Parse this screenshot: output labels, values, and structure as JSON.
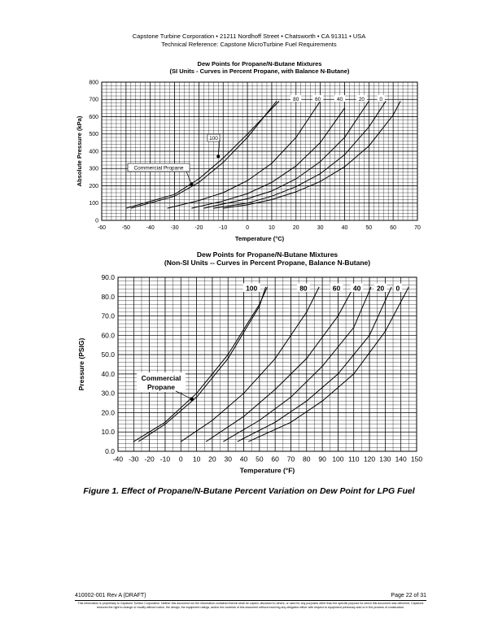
{
  "header": {
    "line1": "Capstone Turbine Corporation • 21211 Nordhoff Street • Chatsworth • CA 91311 • USA",
    "line2": "Technical Reference: Capstone MicroTurbine Fuel Requirements"
  },
  "chart_data": [
    {
      "type": "line",
      "title": "Dew Points for Propane/N-Butane Mixtures",
      "subtitle": "(SI Units - Curves in Percent Propane, with Balance N-Butane)",
      "xlabel": "Temperature (°C)",
      "ylabel": "Absolute Pressure (kPa)",
      "xlim": [
        -60,
        70
      ],
      "ylim": [
        0,
        800
      ],
      "xticks": [
        -60,
        -50,
        -40,
        -30,
        -20,
        -10,
        0,
        10,
        20,
        30,
        40,
        50,
        60,
        70
      ],
      "yticks": [
        0,
        100,
        200,
        300,
        400,
        500,
        600,
        700,
        800
      ],
      "xtick_labels": [
        "-60",
        "-50",
        "-40",
        "-30",
        "-20",
        "-10",
        "0",
        "10",
        "20",
        "30",
        "40",
        "50",
        "60",
        "70"
      ],
      "ytick_labels": [
        "0",
        "100",
        "200",
        "300",
        "400",
        "500",
        "600",
        "700",
        "800"
      ],
      "x_minor_step": 2,
      "y_minor_step": 20,
      "grid": true,
      "series": [
        {
          "name": "100",
          "x": [
            -50,
            -30,
            -20,
            -10,
            0,
            13
          ],
          "y": [
            70,
            150,
            240,
            360,
            500,
            690
          ]
        },
        {
          "name": "Commercial Propane",
          "x": [
            -48,
            -30,
            -20,
            -10,
            0,
            12
          ],
          "y": [
            70,
            140,
            220,
            335,
            480,
            690
          ]
        },
        {
          "name": "80",
          "x": [
            -33,
            -20,
            -10,
            0,
            10,
            20,
            30
          ],
          "y": [
            70,
            115,
            160,
            230,
            330,
            480,
            690
          ]
        },
        {
          "name": "60",
          "x": [
            -23,
            -10,
            0,
            10,
            20,
            30,
            40
          ],
          "y": [
            70,
            112,
            155,
            220,
            315,
            450,
            650
          ]
        },
        {
          "name": "40",
          "x": [
            -18,
            0,
            10,
            20,
            30,
            40,
            50
          ],
          "y": [
            70,
            125,
            170,
            240,
            340,
            480,
            690
          ]
        },
        {
          "name": "20",
          "x": [
            -14,
            0,
            10,
            20,
            30,
            40,
            50,
            57
          ],
          "y": [
            70,
            100,
            140,
            195,
            270,
            380,
            540,
            690
          ]
        },
        {
          "name": "0",
          "x": [
            -10,
            0,
            10,
            20,
            30,
            40,
            50,
            60,
            63
          ],
          "y": [
            70,
            90,
            120,
            165,
            225,
            310,
            430,
            610,
            690
          ]
        }
      ],
      "annotations": [
        {
          "text": "100",
          "target_x": -12,
          "target_y": 370
        },
        {
          "text": "Commercial Propane",
          "target_x": -23,
          "target_y": 210
        }
      ],
      "curve_labels": [
        {
          "text": "80",
          "x": 20,
          "y": 700
        },
        {
          "text": "60",
          "x": 29,
          "y": 700
        },
        {
          "text": "40",
          "x": 38,
          "y": 700
        },
        {
          "text": "20",
          "x": 47,
          "y": 700
        },
        {
          "text": "0",
          "x": 55,
          "y": 700
        }
      ]
    },
    {
      "type": "line",
      "title": "Dew Points for Propane/N-Butane Mixtures",
      "subtitle": "(Non-SI Units -- Curves in Percent Propane, Balance N-Butane)",
      "xlabel": "Temperature (°F)",
      "ylabel": "Pressure (PSIG)",
      "xlim": [
        -40,
        150
      ],
      "ylim": [
        0,
        90
      ],
      "xticks": [
        -40,
        -30,
        -20,
        -10,
        0,
        10,
        20,
        30,
        40,
        50,
        60,
        70,
        80,
        90,
        100,
        110,
        120,
        130,
        140,
        150
      ],
      "yticks": [
        0,
        10,
        20,
        30,
        40,
        50,
        60,
        70,
        80,
        90
      ],
      "xtick_labels": [
        "-40",
        "-30",
        "-20",
        "-10",
        "0",
        "10",
        "20",
        "30",
        "40",
        "50",
        "60",
        "70",
        "80",
        "90",
        "100",
        "110",
        "120",
        "130",
        "140",
        "150"
      ],
      "ytick_labels": [
        "0.0",
        "10.0",
        "20.0",
        "30.0",
        "40.0",
        "50.0",
        "60.0",
        "70.0",
        "80.0",
        "90.0"
      ],
      "x_minor_step": 5,
      "y_minor_step": 2,
      "grid": true,
      "series": [
        {
          "name": "100",
          "x": [
            -30,
            -10,
            10,
            30,
            50,
            55
          ],
          "y": [
            5,
            15,
            30,
            50,
            76,
            85
          ]
        },
        {
          "name": "Commercial Propane",
          "x": [
            -27,
            -10,
            10,
            30,
            50,
            54
          ],
          "y": [
            5,
            14,
            28,
            48,
            75,
            85
          ]
        },
        {
          "name": "80",
          "x": [
            0,
            20,
            40,
            60,
            80,
            88
          ],
          "y": [
            5,
            16,
            30,
            48,
            72,
            85
          ]
        },
        {
          "name": "60",
          "x": [
            16,
            40,
            60,
            80,
            100,
            110
          ],
          "y": [
            5,
            18,
            32,
            48,
            70,
            85
          ]
        },
        {
          "name": "40",
          "x": [
            27,
            50,
            70,
            90,
            110,
            121
          ],
          "y": [
            5,
            16,
            28,
            44,
            64,
            85
          ]
        },
        {
          "name": "20",
          "x": [
            36,
            60,
            80,
            100,
            120,
            134
          ],
          "y": [
            5,
            15,
            26,
            40,
            60,
            85
          ]
        },
        {
          "name": "0",
          "x": [
            43,
            70,
            90,
            110,
            130,
            145
          ],
          "y": [
            5,
            15,
            26,
            40,
            62,
            85
          ]
        }
      ],
      "annotations": [
        {
          "text": "Commercial",
          "text2": "Propane",
          "target_x": 7,
          "target_y": 27
        }
      ],
      "curve_labels": [
        {
          "text": "100",
          "x": 45,
          "y": 84
        },
        {
          "text": "80",
          "x": 78,
          "y": 84
        },
        {
          "text": "60",
          "x": 99,
          "y": 84
        },
        {
          "text": "40",
          "x": 112,
          "y": 84
        },
        {
          "text": "20",
          "x": 127,
          "y": 84
        },
        {
          "text": "0",
          "x": 138,
          "y": 84
        }
      ]
    }
  ],
  "caption": "Figure 1. Effect of Propane/N-Butane Percent Variation on Dew Point for LPG Fuel",
  "footer": {
    "doc_number": "410002-001 Rev A (DRAFT)",
    "page": "Page 22 of 31",
    "notice": "This information is proprietary to Capstone Turbine Corporation. Neither this document nor the information contained therein shall be copied, disclosed to others, or used for any purposes other than the specific purpose for which this document was delivered. Capstone reserves the right to change or modify without notice, the design, the equipment ratings, and/or the contents of this document without incurring any obligation either with respect to equipment previously sold or in the process of construction."
  }
}
